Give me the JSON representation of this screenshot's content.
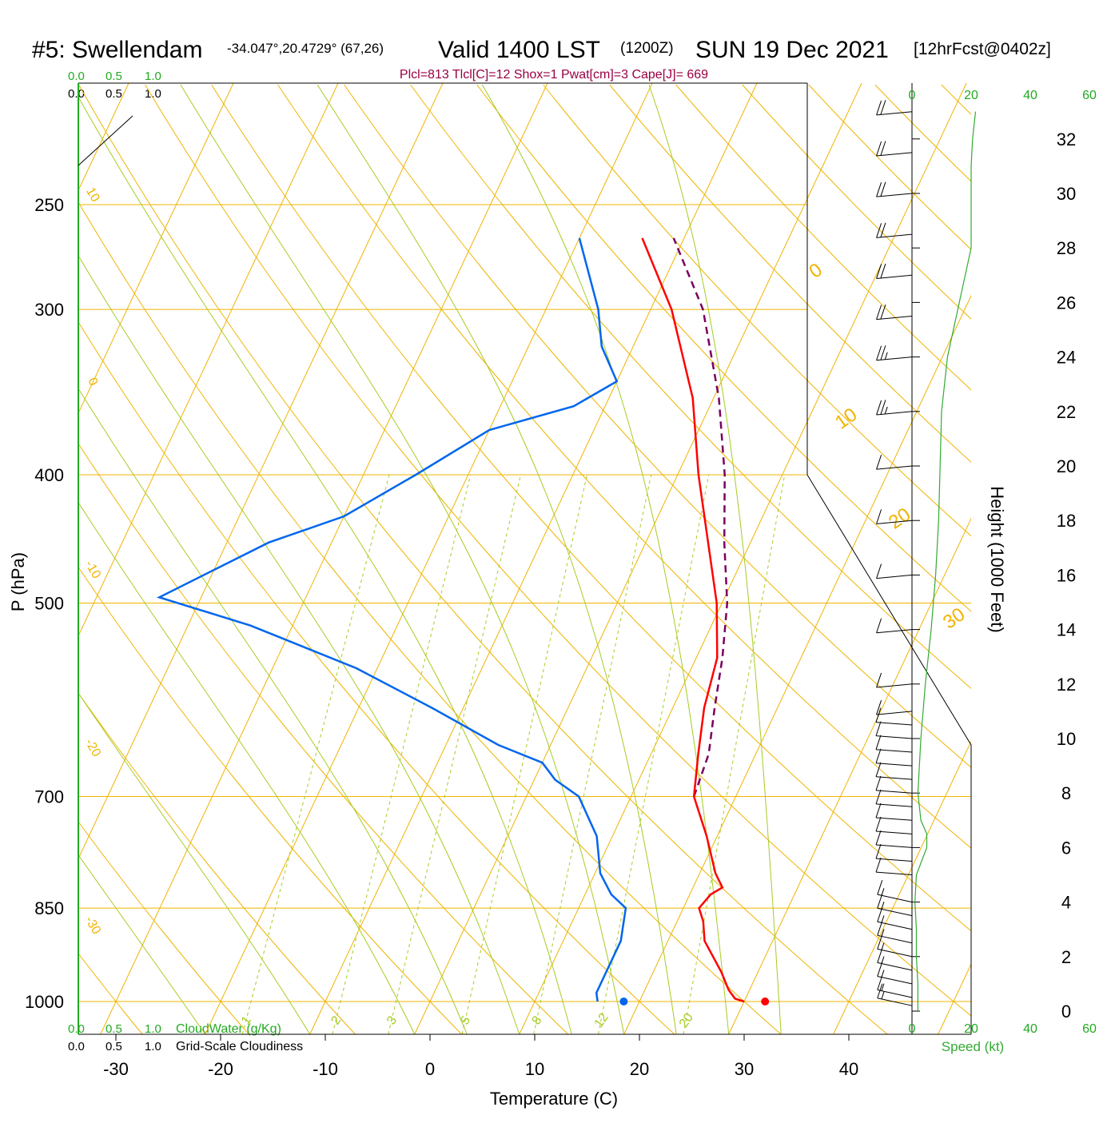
{
  "header": {
    "station": "#5: Swellendam",
    "coords": "-34.047°,20.4729° (67,26)",
    "valid": "Valid 1400 LST",
    "zulu": "(1200Z)",
    "date": "SUN 19 Dec 2021",
    "forecast": "[12hrFcst@0402z]",
    "params": "Plcl=813 Tlcl[C]=12 Shox=1 Pwat[cm]=3 Cape[J]= 669"
  },
  "cloud_labels": {
    "ticks": [
      "0.0",
      "0.5",
      "1.0"
    ],
    "cloudwater": "CloudWater (g/Kg)",
    "cloudiness": "Grid-Scale Cloudiness"
  },
  "colors": {
    "temperature": "#ff0000",
    "dewpoint": "#0066ee",
    "parcel": "#7a0060",
    "isotherm": "#f0b400",
    "dry_adiabat": "#f0b400",
    "moist_adiabat": "#a6cc22",
    "mixing_ratio": "#a6cc22",
    "wind_speed": "#33aa33",
    "header_params": "#990044"
  },
  "chart_data": {
    "type": "skew-t",
    "xlabel": "Temperature (C)",
    "ylabel": "P (hPa)",
    "right_label": "Height (1000 Feet)",
    "speed_label": "Speed (kt)",
    "x_ticks": [
      -30,
      -20,
      -10,
      0,
      10,
      20,
      30,
      40
    ],
    "p_ticks": [
      250,
      300,
      400,
      500,
      700,
      850,
      1000
    ],
    "height_ticks": [
      0,
      2,
      4,
      6,
      8,
      10,
      12,
      14,
      16,
      18,
      20,
      22,
      24,
      26,
      28,
      30,
      32
    ],
    "speed_ticks": [
      0,
      20,
      40,
      60
    ],
    "isotherm_labels": [
      -30,
      -20,
      -10,
      0,
      10,
      20,
      30
    ],
    "mixing_ratio_labels": [
      1,
      2,
      3,
      5,
      8,
      12,
      20
    ],
    "temperature": [
      [
        1000,
        30
      ],
      [
        995,
        29
      ],
      [
        980,
        28
      ],
      [
        950,
        26.5
      ],
      [
        900,
        23.5
      ],
      [
        870,
        22.5
      ],
      [
        850,
        21.5
      ],
      [
        830,
        22
      ],
      [
        820,
        22.8
      ],
      [
        800,
        21.5
      ],
      [
        750,
        19
      ],
      [
        700,
        16
      ],
      [
        650,
        14.5
      ],
      [
        600,
        13
      ],
      [
        550,
        12
      ],
      [
        500,
        9.5
      ],
      [
        400,
        2
      ],
      [
        350,
        -2
      ],
      [
        300,
        -8
      ],
      [
        265,
        -14
      ]
    ],
    "dewpoint": [
      [
        1000,
        16
      ],
      [
        985,
        15.5
      ],
      [
        950,
        15.5
      ],
      [
        900,
        15.5
      ],
      [
        850,
        14.5
      ],
      [
        830,
        12.5
      ],
      [
        800,
        10.5
      ],
      [
        750,
        8.5
      ],
      [
        700,
        5
      ],
      [
        680,
        2
      ],
      [
        660,
        0
      ],
      [
        640,
        -5
      ],
      [
        600,
        -13
      ],
      [
        560,
        -22
      ],
      [
        520,
        -34
      ],
      [
        495,
        -44
      ],
      [
        450,
        -36
      ],
      [
        430,
        -30
      ],
      [
        400,
        -25
      ],
      [
        370,
        -20
      ],
      [
        355,
        -13
      ],
      [
        340,
        -10
      ],
      [
        320,
        -13
      ],
      [
        300,
        -15
      ],
      [
        265,
        -20
      ]
    ],
    "parcel": [
      [
        700,
        16
      ],
      [
        650,
        15.5
      ],
      [
        600,
        14
      ],
      [
        550,
        12.5
      ],
      [
        500,
        10.5
      ],
      [
        450,
        7.5
      ],
      [
        400,
        4.5
      ],
      [
        350,
        0.5
      ],
      [
        300,
        -5
      ],
      [
        265,
        -11
      ]
    ],
    "surface_temp": 32,
    "surface_dewpoint": 18.5,
    "wind_speed_profile": [
      [
        0,
        2
      ],
      [
        1,
        2
      ],
      [
        2,
        1.5
      ],
      [
        3,
        1.5
      ],
      [
        4,
        1
      ],
      [
        5,
        1.5
      ],
      [
        6,
        5
      ],
      [
        6.5,
        5
      ],
      [
        7,
        3
      ],
      [
        8,
        2
      ],
      [
        10,
        3
      ],
      [
        12,
        4.5
      ],
      [
        14,
        6.5
      ],
      [
        16,
        8
      ],
      [
        18,
        9
      ],
      [
        20,
        9.5
      ],
      [
        22,
        10
      ],
      [
        24,
        12
      ],
      [
        26,
        16
      ],
      [
        28,
        20
      ],
      [
        30,
        20
      ],
      [
        31,
        20
      ],
      [
        32,
        20.5
      ],
      [
        33,
        21.5
      ]
    ],
    "wind_barbs_kt": [
      [
        0.2,
        5
      ],
      [
        0.5,
        5
      ],
      [
        1,
        5
      ],
      [
        1.5,
        5
      ],
      [
        2,
        5
      ],
      [
        2.5,
        5
      ],
      [
        3,
        5
      ],
      [
        3.5,
        5
      ],
      [
        4,
        5
      ],
      [
        5,
        10
      ],
      [
        5.5,
        10
      ],
      [
        6,
        10
      ],
      [
        6.5,
        10
      ],
      [
        7,
        10
      ],
      [
        7.5,
        10
      ],
      [
        8,
        10
      ],
      [
        8.5,
        10
      ],
      [
        9,
        10
      ],
      [
        9.5,
        10
      ],
      [
        10,
        10
      ],
      [
        10.5,
        10
      ],
      [
        11,
        10
      ],
      [
        12,
        10
      ],
      [
        14,
        10
      ],
      [
        16,
        10
      ],
      [
        18,
        10
      ],
      [
        20,
        10
      ],
      [
        22,
        15
      ],
      [
        24,
        15
      ],
      [
        25.5,
        20
      ],
      [
        27,
        20
      ],
      [
        28.5,
        20
      ],
      [
        30,
        20
      ],
      [
        31.5,
        20
      ],
      [
        33,
        20
      ]
    ]
  }
}
